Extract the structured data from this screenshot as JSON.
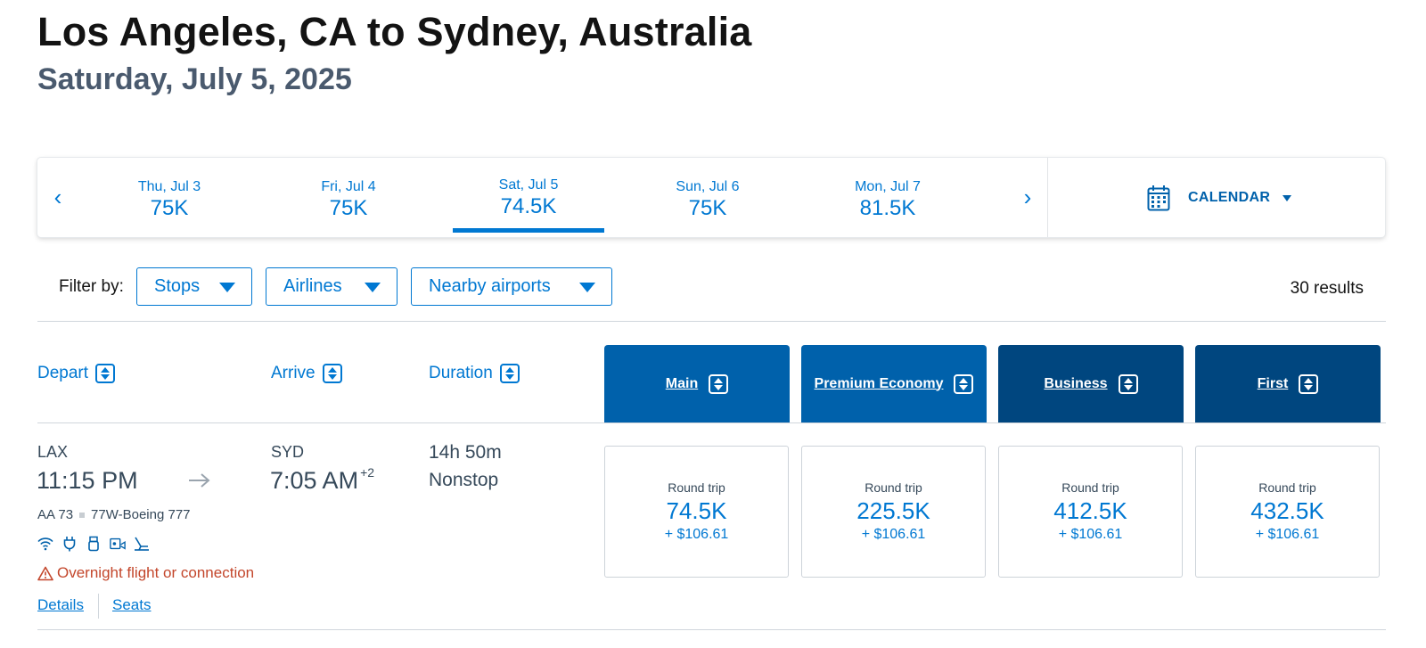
{
  "header": {
    "title": "Los Angeles, CA to Sydney, Australia",
    "subtitle": "Saturday, July 5, 2025"
  },
  "date_bar": {
    "prev_icon": "chevron-left-icon",
    "next_icon": "chevron-right-icon",
    "dates": [
      {
        "label": "Thu, Jul 3",
        "price": "75K",
        "selected": false
      },
      {
        "label": "Fri, Jul 4",
        "price": "75K",
        "selected": false
      },
      {
        "label": "Sat, Jul 5",
        "price": "74.5K",
        "selected": true
      },
      {
        "label": "Sun, Jul 6",
        "price": "75K",
        "selected": false
      },
      {
        "label": "Mon, Jul 7",
        "price": "81.5K",
        "selected": false
      }
    ],
    "calendar_label": "CALENDAR",
    "accent_color": "#0078d2"
  },
  "filters": {
    "label": "Filter by:",
    "stops": "Stops",
    "airlines": "Airlines",
    "nearby": "Nearby airports",
    "results": "30 results"
  },
  "columns": {
    "depart": "Depart",
    "arrive": "Arrive",
    "duration": "Duration",
    "cabins": [
      {
        "label": "Main",
        "color": "#0061ab"
      },
      {
        "label": "Premium Economy",
        "color": "#0061ab"
      },
      {
        "label": "Business",
        "color": "#00467f"
      },
      {
        "label": "First",
        "color": "#00467f"
      }
    ]
  },
  "flight": {
    "origin": "LAX",
    "depart_time": "11:15 PM",
    "destination": "SYD",
    "arrive_time": "7:05 AM",
    "day_offset": "+2",
    "duration": "14h 50m",
    "stops": "Nonstop",
    "flight_number": "AA 73",
    "aircraft": "77W-Boeing 777",
    "amenities": [
      "wifi-icon",
      "power-outlet-icon",
      "usb-icon",
      "entertainment-icon",
      "lie-flat-seat-icon"
    ],
    "warning": "Overnight flight or connection",
    "details_link": "Details",
    "seats_link": "Seats",
    "fares": [
      {
        "trip": "Round trip",
        "miles": "74.5K",
        "tax": "+ $106.61"
      },
      {
        "trip": "Round trip",
        "miles": "225.5K",
        "tax": "+ $106.61"
      },
      {
        "trip": "Round trip",
        "miles": "412.5K",
        "tax": "+ $106.61"
      },
      {
        "trip": "Round trip",
        "miles": "432.5K",
        "tax": "+ $106.61"
      }
    ]
  }
}
